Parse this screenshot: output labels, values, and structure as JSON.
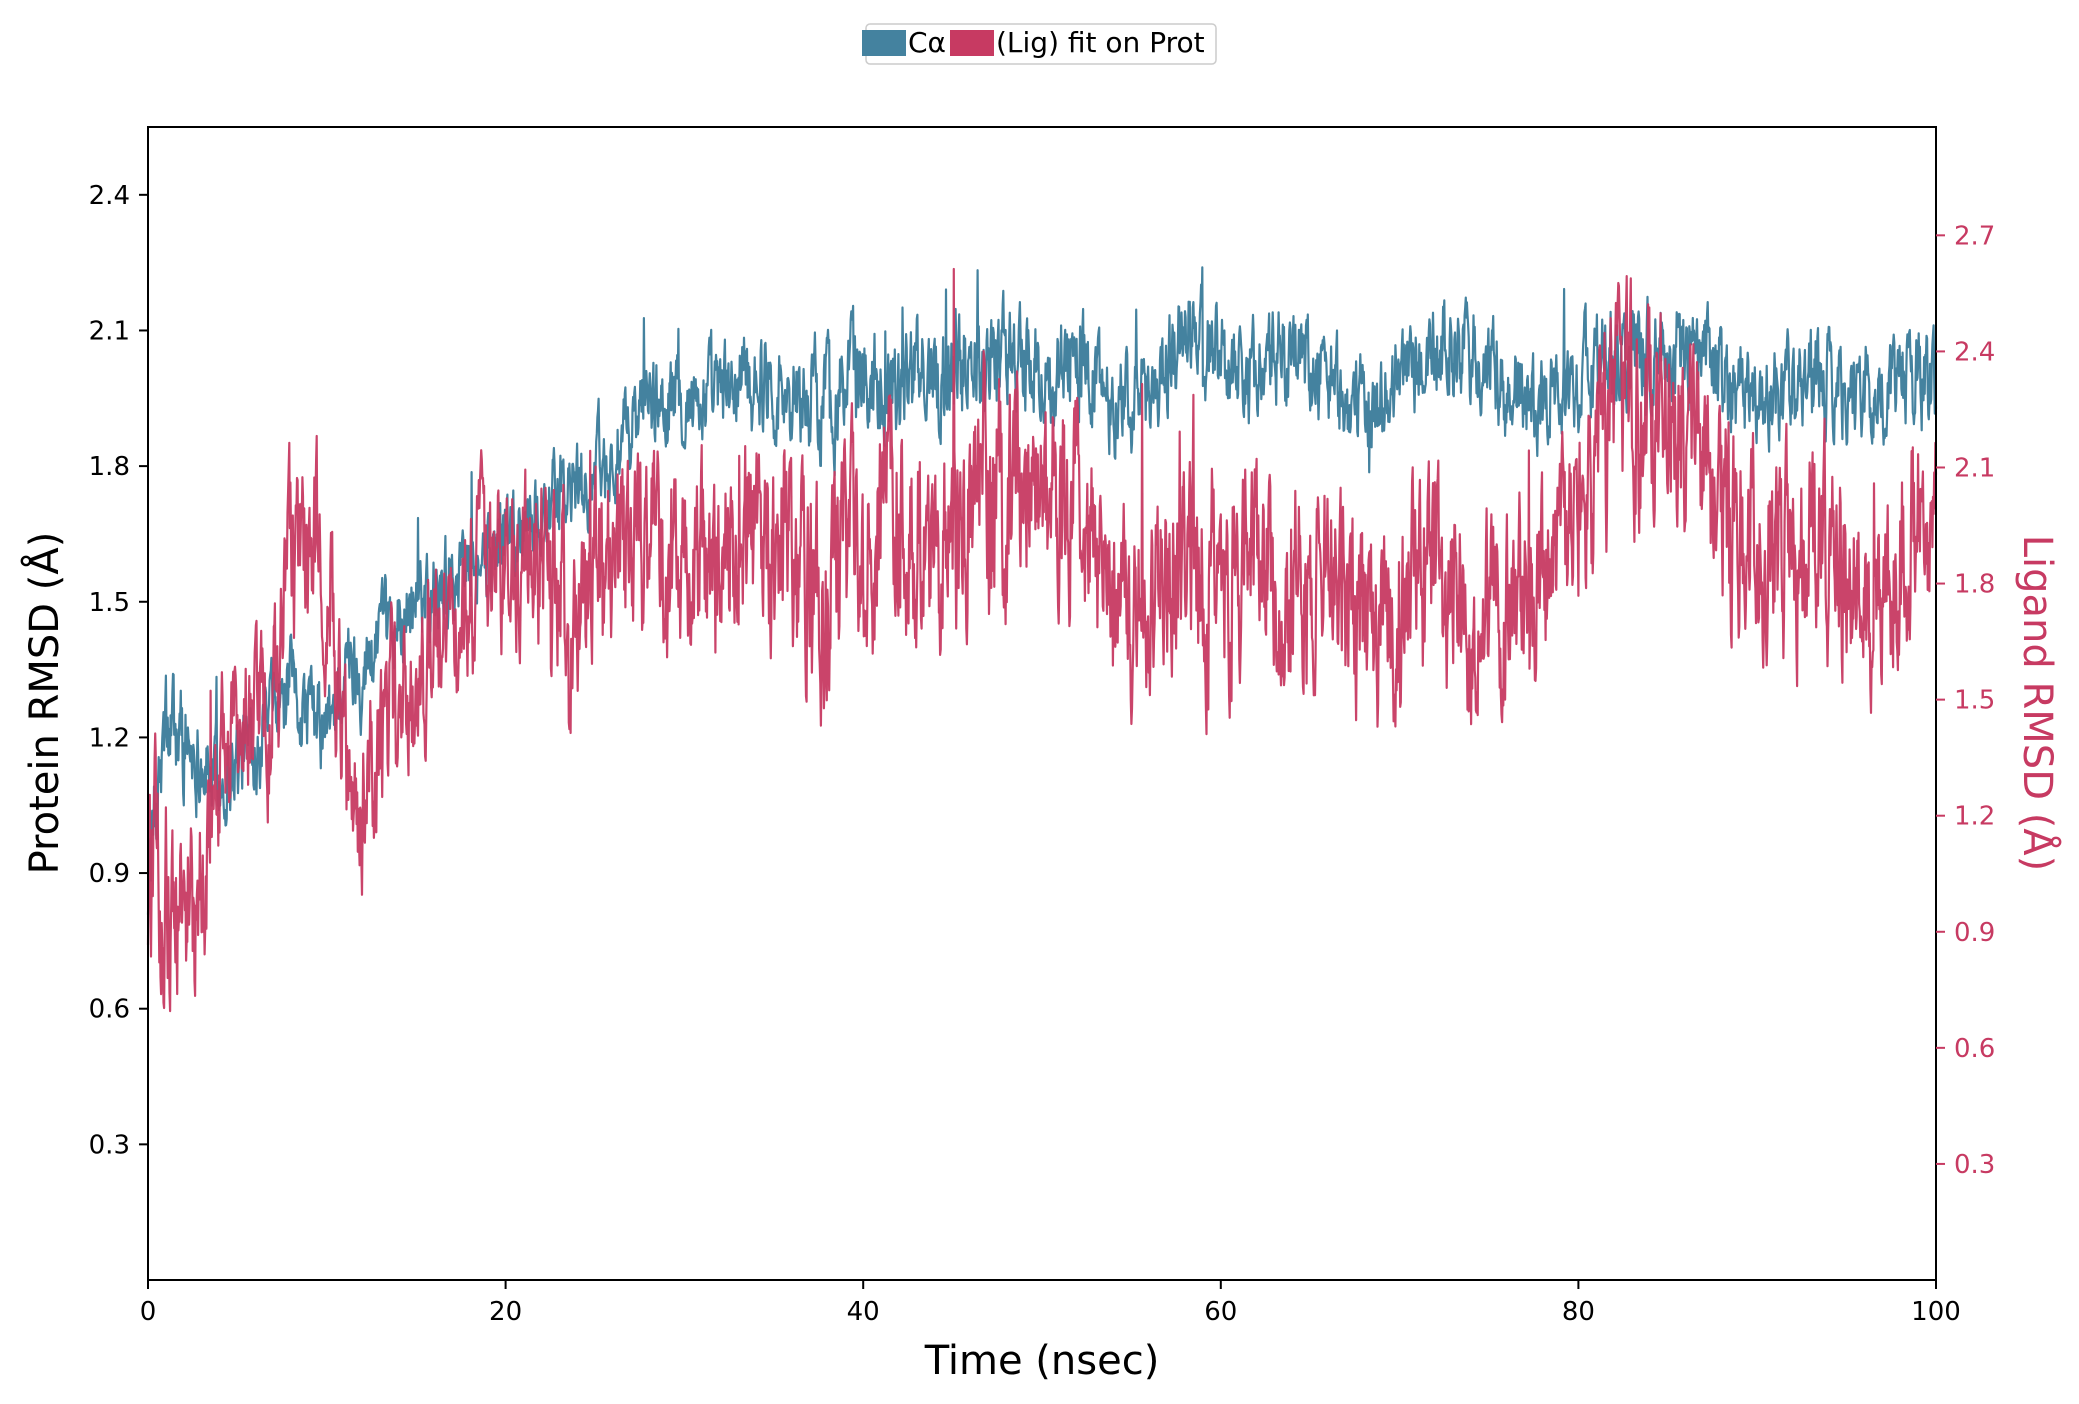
{
  "chart_data": {
    "type": "line",
    "xlabel": "Time (nsec)",
    "x_ticks": [
      0,
      20,
      40,
      60,
      80,
      100
    ],
    "xlim": [
      0,
      100
    ],
    "grid": false,
    "legend": {
      "placement": "top-center",
      "entries": [
        "Cα",
        "(Lig) fit on Prot"
      ]
    },
    "y_left": {
      "label": "Protein RMSD (Å)",
      "ticks": [
        0.3,
        0.6,
        0.9,
        1.2,
        1.5,
        1.8,
        2.1,
        2.4
      ],
      "tick_labels": [
        "0.3",
        "0.6",
        "0.9",
        "1.2",
        "1.5",
        "1.8",
        "2.1",
        "2.4"
      ],
      "ylim": [
        0.0,
        2.55
      ]
    },
    "y_right": {
      "label": "Ligand RMSD (Å)",
      "ticks": [
        0.3,
        0.6,
        0.9,
        1.2,
        1.5,
        1.8,
        2.1,
        2.4,
        2.7
      ],
      "tick_labels": [
        "0.3",
        "0.6",
        "0.9",
        "1.2",
        "1.5",
        "1.8",
        "2.1",
        "2.4",
        "2.7"
      ],
      "ylim": [
        0.0,
        2.98
      ]
    },
    "series": [
      {
        "name": "Cα",
        "axis": "left",
        "color": "#44829f",
        "x": [
          0,
          1,
          2,
          3,
          4,
          5,
          6,
          7,
          8,
          9,
          10,
          11,
          12,
          13,
          14,
          15,
          16,
          17,
          18,
          19,
          20,
          22,
          24,
          26,
          28,
          30,
          32,
          34,
          36,
          38,
          40,
          42,
          44,
          46,
          48,
          50,
          52,
          54,
          56,
          58,
          60,
          62,
          64,
          66,
          68,
          70,
          72,
          74,
          76,
          78,
          80,
          82,
          84,
          86,
          88,
          90,
          92,
          94,
          96,
          98,
          100
        ],
        "y": [
          0.9,
          1.2,
          1.2,
          1.15,
          1.1,
          1.15,
          1.2,
          1.25,
          1.3,
          1.25,
          1.2,
          1.35,
          1.35,
          1.4,
          1.45,
          1.5,
          1.55,
          1.55,
          1.6,
          1.6,
          1.65,
          1.7,
          1.75,
          1.8,
          1.95,
          1.95,
          1.95,
          2.0,
          1.95,
          1.95,
          2.0,
          2.0,
          2.0,
          2.05,
          2.05,
          2.0,
          2.05,
          1.95,
          1.95,
          2.1,
          2.05,
          2.0,
          2.05,
          2.0,
          1.9,
          2.0,
          2.05,
          2.05,
          1.95,
          1.95,
          2.0,
          2.05,
          2.05,
          2.05,
          2.0,
          1.95,
          2.0,
          2.0,
          1.95,
          2.0,
          2.0
        ],
        "spread": [
          0.15,
          0.15,
          0.15,
          0.12,
          0.12,
          0.12,
          0.12,
          0.12,
          0.12,
          0.12,
          0.12,
          0.12,
          0.12,
          0.12,
          0.12,
          0.12,
          0.12,
          0.12,
          0.12,
          0.12,
          0.12,
          0.12,
          0.12,
          0.12,
          0.12,
          0.12,
          0.13,
          0.13,
          0.13,
          0.15,
          0.15,
          0.14,
          0.14,
          0.14,
          0.14,
          0.14,
          0.14,
          0.13,
          0.13,
          0.14,
          0.13,
          0.13,
          0.13,
          0.13,
          0.13,
          0.13,
          0.14,
          0.14,
          0.13,
          0.13,
          0.13,
          0.14,
          0.14,
          0.13,
          0.13,
          0.13,
          0.13,
          0.13,
          0.13,
          0.13,
          0.13
        ]
      },
      {
        "name": "(Lig) fit on Prot",
        "axis": "right",
        "color": "#c73a62",
        "x": [
          0,
          1,
          2,
          3,
          4,
          5,
          6,
          7,
          8,
          9,
          10,
          11,
          12,
          13,
          14,
          15,
          16,
          17,
          18,
          19,
          20,
          22,
          24,
          26,
          28,
          30,
          32,
          34,
          36,
          38,
          40,
          42,
          44,
          46,
          48,
          50,
          52,
          54,
          56,
          58,
          60,
          62,
          64,
          66,
          68,
          70,
          72,
          74,
          76,
          78,
          80,
          82,
          84,
          86,
          88,
          90,
          92,
          94,
          96,
          98,
          100
        ],
        "y": [
          1.05,
          1.0,
          0.95,
          0.95,
          1.3,
          1.4,
          1.4,
          1.45,
          1.85,
          1.85,
          1.9,
          1.3,
          1.25,
          1.4,
          1.5,
          1.55,
          1.65,
          1.75,
          1.8,
          1.85,
          1.85,
          1.85,
          1.7,
          1.85,
          1.9,
          1.85,
          1.9,
          1.95,
          1.9,
          1.75,
          1.95,
          2.0,
          1.9,
          2.0,
          2.05,
          2.05,
          2.0,
          1.65,
          1.8,
          1.85,
          1.8,
          1.9,
          1.8,
          1.8,
          1.7,
          1.75,
          1.8,
          1.7,
          1.75,
          1.75,
          2.0,
          2.2,
          2.25,
          2.2,
          1.95,
          1.9,
          1.85,
          1.9,
          1.75,
          1.9,
          2.0
        ],
        "spread": [
          0.35,
          0.3,
          0.3,
          0.3,
          0.25,
          0.25,
          0.25,
          0.25,
          0.28,
          0.28,
          0.3,
          0.25,
          0.25,
          0.25,
          0.25,
          0.25,
          0.25,
          0.25,
          0.25,
          0.25,
          0.25,
          0.28,
          0.28,
          0.28,
          0.3,
          0.3,
          0.3,
          0.32,
          0.32,
          0.32,
          0.35,
          0.35,
          0.32,
          0.35,
          0.35,
          0.32,
          0.32,
          0.3,
          0.3,
          0.32,
          0.32,
          0.32,
          0.32,
          0.3,
          0.3,
          0.3,
          0.3,
          0.3,
          0.3,
          0.3,
          0.3,
          0.32,
          0.32,
          0.32,
          0.3,
          0.3,
          0.3,
          0.3,
          0.3,
          0.3,
          0.3
        ]
      }
    ]
  }
}
